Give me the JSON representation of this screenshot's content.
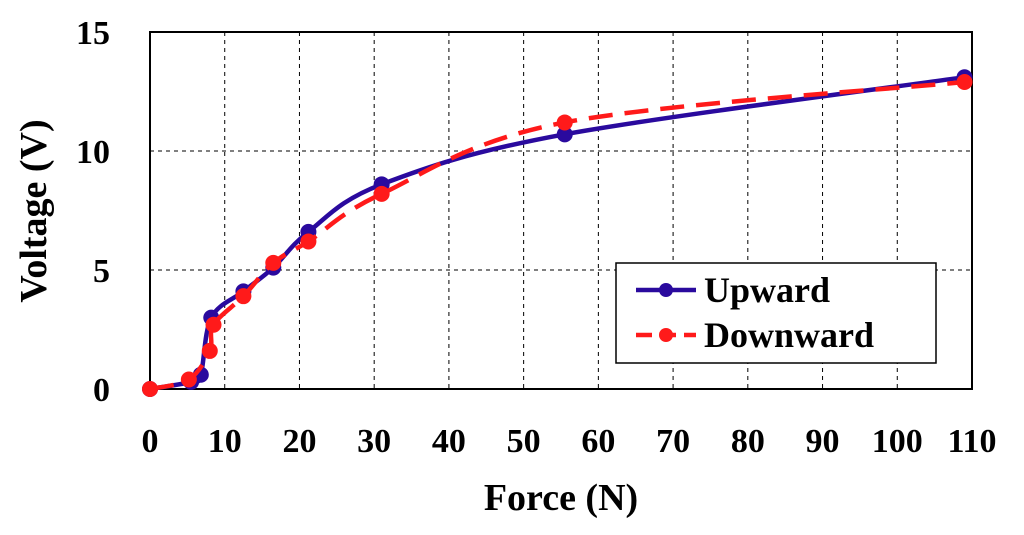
{
  "chart_data": {
    "type": "line",
    "title": "",
    "xlabel": "Force (N)",
    "ylabel": "Voltage (V)",
    "xlim": [
      0,
      110
    ],
    "ylim": [
      0,
      15
    ],
    "x_ticks": [
      0,
      10,
      20,
      30,
      40,
      50,
      60,
      70,
      80,
      90,
      100,
      110
    ],
    "y_ticks": [
      0,
      5,
      10,
      15
    ],
    "grid": true,
    "legend_position": "bottom-right",
    "series": [
      {
        "name": "Upward",
        "color": "#2a0a9e",
        "style": "solid",
        "x": [
          0,
          5.5,
          6.8,
          8.2,
          12.5,
          16.5,
          21.2,
          31,
          55.5,
          109
        ],
        "y": [
          0,
          0.3,
          0.6,
          3.0,
          4.1,
          5.1,
          6.6,
          8.6,
          10.7,
          13.1
        ]
      },
      {
        "name": "Downward",
        "color": "#ff1a1a",
        "style": "dashed",
        "x": [
          0,
          5.2,
          8,
          8.5,
          12.5,
          16.5,
          21.2,
          31,
          55.5,
          109
        ],
        "y": [
          0,
          0.4,
          1.6,
          2.7,
          3.9,
          5.3,
          6.2,
          8.2,
          11.2,
          12.9
        ]
      }
    ]
  }
}
